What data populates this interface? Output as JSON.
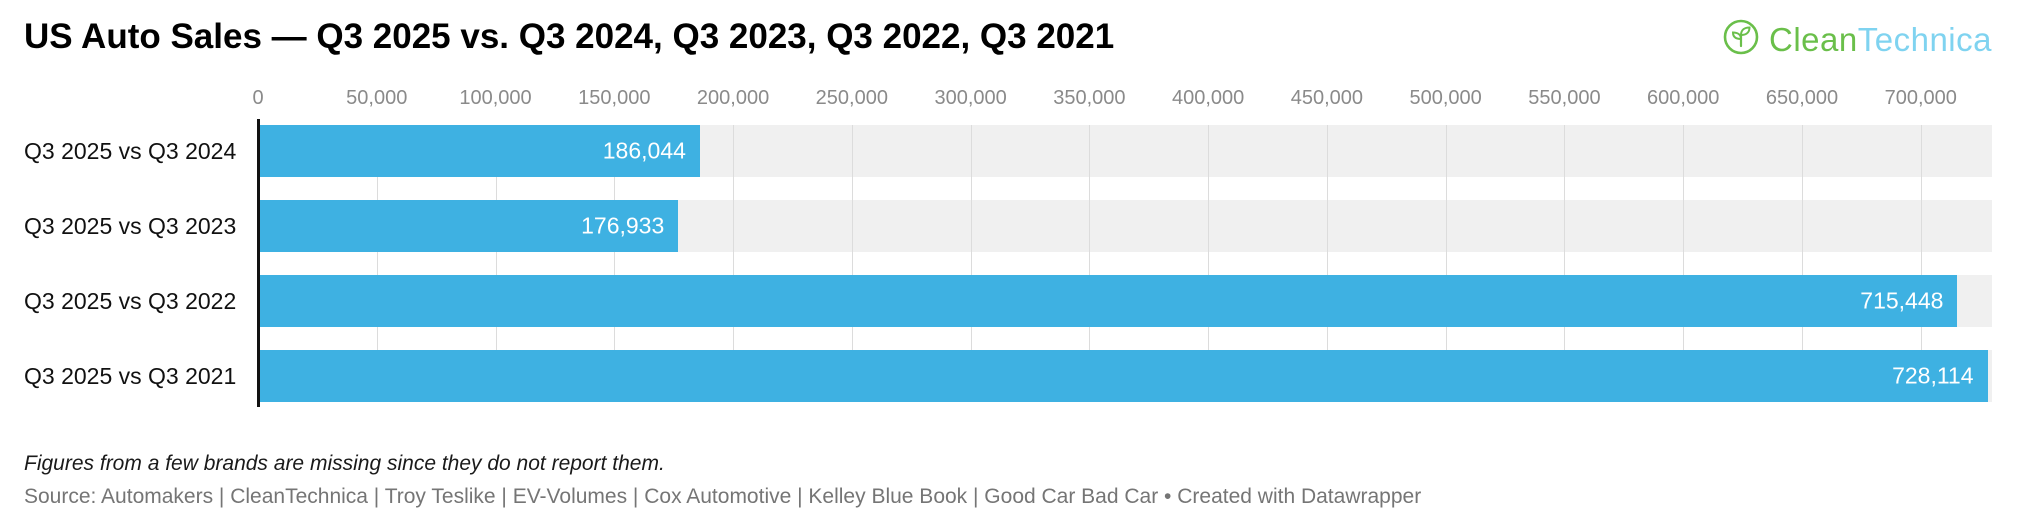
{
  "header": {
    "title": "US Auto Sales — Q3 2025 vs. Q3 2024, Q3 2023, Q3 2022, Q3 2021"
  },
  "branding": {
    "logo_part1": "Clean",
    "logo_part2": "Technica",
    "logo_icon": "cleantechnica-eco-circle-icon",
    "logo_green": "#6abf4a",
    "logo_blue": "#7fd3f0"
  },
  "chart_data": {
    "type": "bar",
    "orientation": "horizontal",
    "title": "US Auto Sales — Q3 2025 vs. Q3 2024, Q3 2023, Q3 2022, Q3 2021",
    "categories": [
      "Q3 2025 vs Q3 2024",
      "Q3 2025 vs Q3 2023",
      "Q3 2025 vs Q3 2022",
      "Q3 2025 vs Q3 2021"
    ],
    "values": [
      186044,
      176933,
      715448,
      728114
    ],
    "value_labels": [
      "186,044",
      "176,933",
      "715,448",
      "728,114"
    ],
    "xlim": [
      0,
      730000
    ],
    "x_ticks": [
      0,
      50000,
      100000,
      150000,
      200000,
      250000,
      300000,
      350000,
      400000,
      450000,
      500000,
      550000,
      600000,
      650000,
      700000
    ],
    "x_tick_labels": [
      "0",
      "50,000",
      "100,000",
      "150,000",
      "200,000",
      "250,000",
      "300,000",
      "350,000",
      "400,000",
      "450,000",
      "500,000",
      "550,000",
      "600,000",
      "650,000",
      "700,000"
    ],
    "bar_color": "#3eb1e2",
    "band_color": "#f0f0f0",
    "value_label_color": "#ffffff",
    "grid": true,
    "legend": "none",
    "xlabel": "",
    "ylabel": ""
  },
  "notes": {
    "footnote": "Figures from a few brands are missing since they do not report them.",
    "source": "Source: Automakers | CleanTechnica | Troy Teslike | EV-Volumes | Cox Automotive | Kelley Blue Book | Good Car Bad Car • Created with Datawrapper"
  }
}
